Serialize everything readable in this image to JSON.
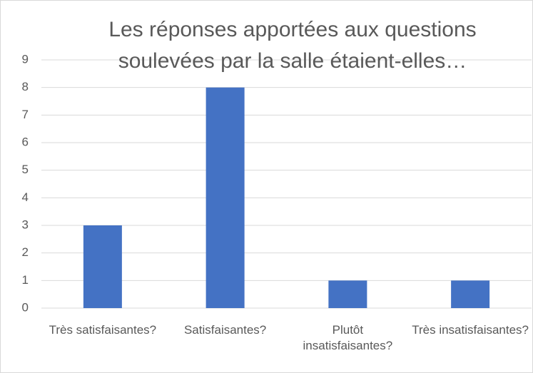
{
  "chart_data": {
    "type": "bar",
    "title": "Les réponses apportées aux questions soulevées par la salle étaient-elles…",
    "categories": [
      "Très satisfaisantes?",
      "Satisfaisantes?",
      "Plutôt insatisfaisantes?",
      "Très insatisfaisantes?"
    ],
    "values": [
      3,
      8,
      1,
      1
    ],
    "color": "#4472c4",
    "ylim": [
      0,
      9
    ],
    "yticks": [
      0,
      1,
      2,
      3,
      4,
      5,
      6,
      7,
      8,
      9
    ],
    "grid": true
  }
}
